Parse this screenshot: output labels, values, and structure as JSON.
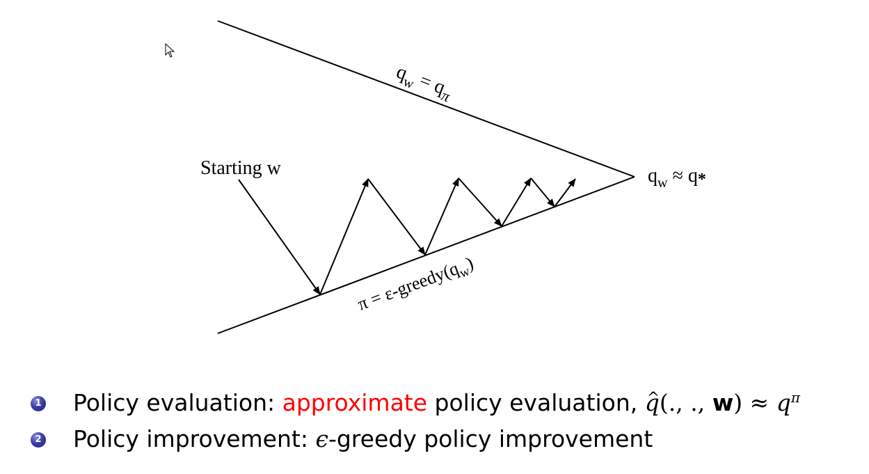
{
  "diagram": {
    "upper_line_label": {
      "base": "q",
      "sub": "w",
      "eq": " = ",
      "rhs": "q",
      "rhs_sub": "π"
    },
    "lower_line_label": {
      "text": "π = ε-greedy(q",
      "sub": "w",
      "close": ")"
    },
    "start_label": "Starting w",
    "converge_label": {
      "base": "q",
      "sub": "w",
      "approx": " ≈ ",
      "rhs": "q",
      "rhs_sub": "*"
    }
  },
  "bullets": [
    {
      "number": "1",
      "prefix": "Policy evaluation: ",
      "highlight": "approximate",
      "suffix": " policy evaluation, ",
      "math": {
        "q": "q",
        "args_open": "(., ., ",
        "w": "w",
        "args_close": ")",
        "approx": " ≈ ",
        "rhs": "q",
        "sup": "π"
      }
    },
    {
      "number": "2",
      "prefix": "Policy improvement: ",
      "math_eps": "ϵ",
      "suffix": "-greedy policy improvement"
    }
  ],
  "colors": {
    "highlight": "#ff0000",
    "line": "#000000",
    "bullet": "#2a2e8c"
  },
  "icons": [
    "cursor-icon"
  ]
}
